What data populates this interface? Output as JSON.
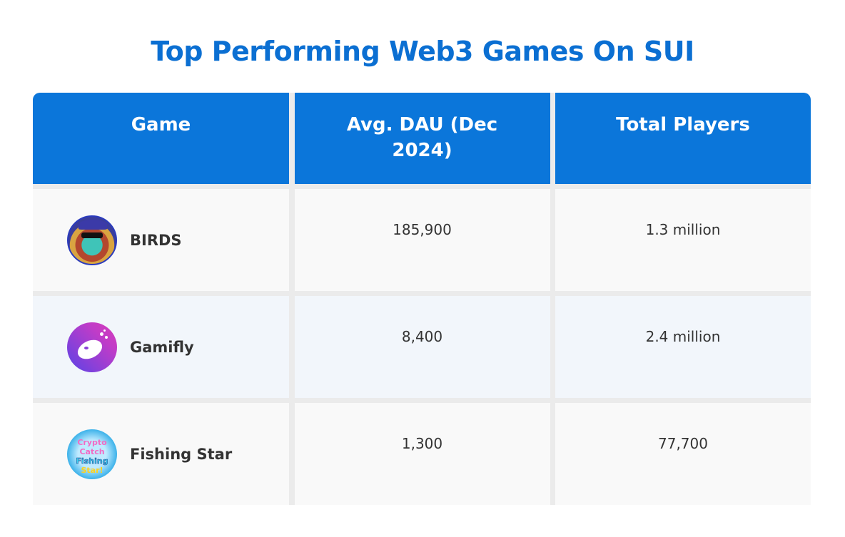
{
  "title": "Top Performing Web3 Games On SUI",
  "columns": [
    "Game",
    "Avg. DAU (Dec 2024)",
    "Total Players"
  ],
  "rows": [
    {
      "game": "BIRDS",
      "logo_icon": "birds-pirate-logo",
      "dau": "185,900",
      "players": "1.3 million"
    },
    {
      "game": "Gamifly",
      "logo_icon": "gamifly-logo",
      "dau": "8,400",
      "players": "2.4 million"
    },
    {
      "game": "Fishing Star",
      "logo_icon": "crypto-catch-fishing-star-logo",
      "logo_text": "Crypto Catch Fishing Star!",
      "dau": "1,300",
      "players": "77,700"
    }
  ],
  "colors": {
    "title": "#0b6fd2",
    "header_bg": "#0b76da",
    "row_bg": "#f9f9f9",
    "row_alt_bg": "#f2f6fb"
  }
}
